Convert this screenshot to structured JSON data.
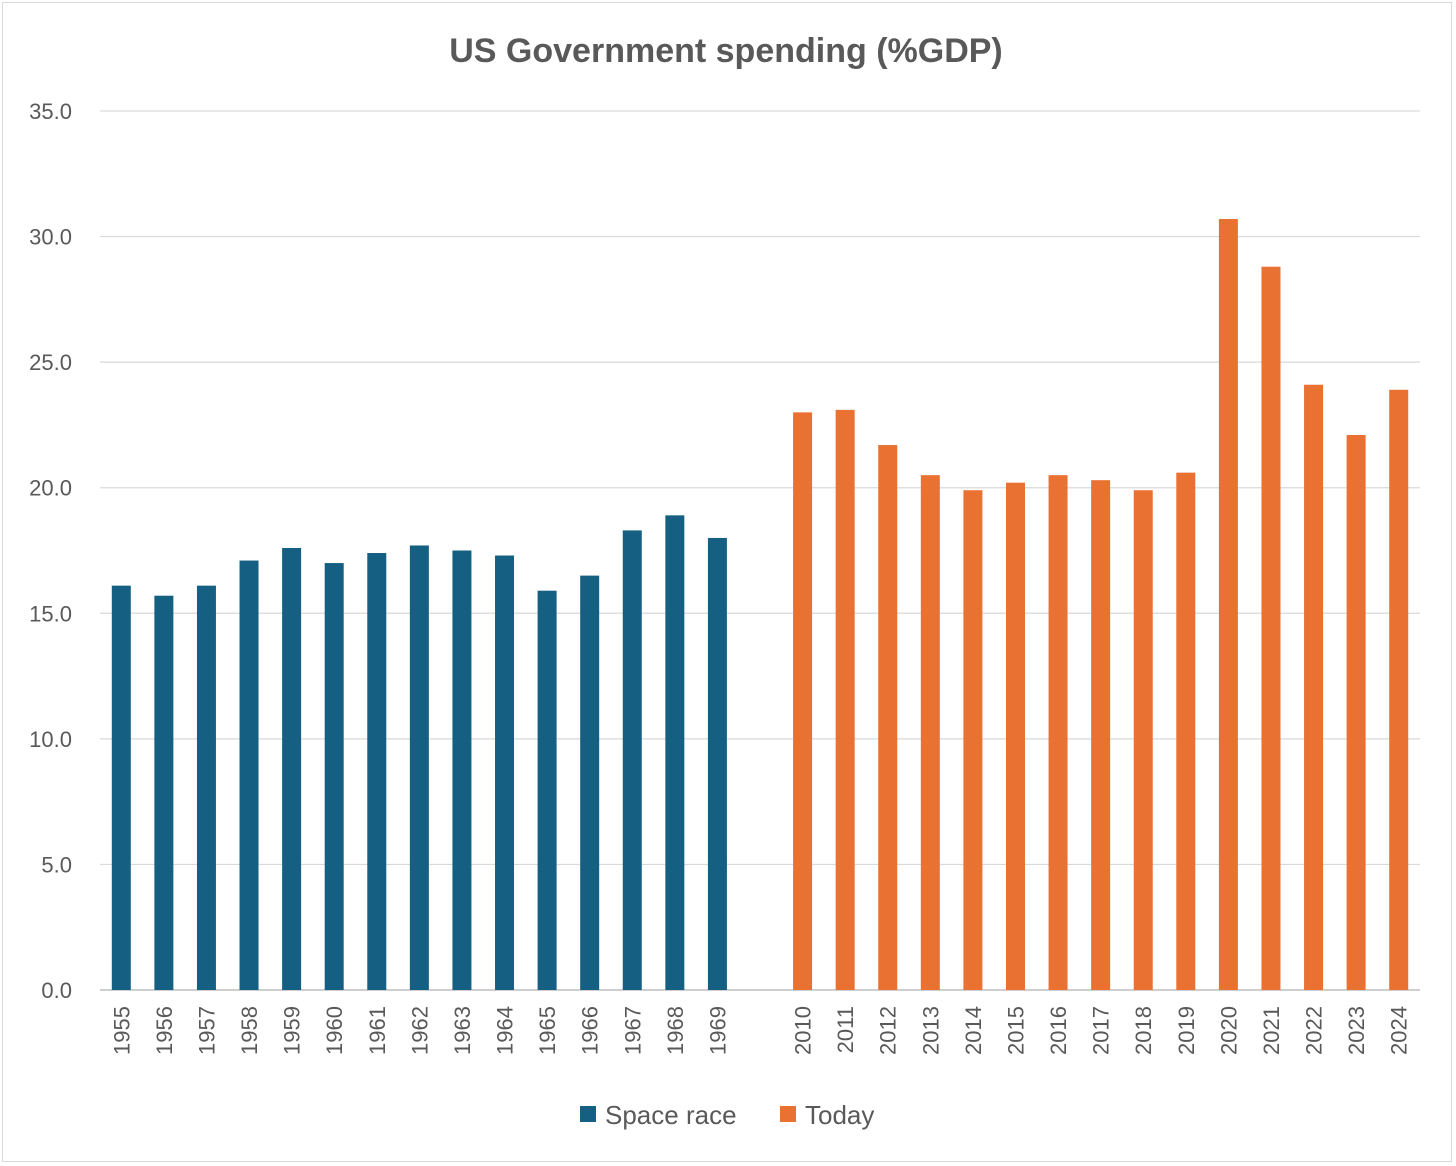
{
  "chart_data": {
    "type": "bar",
    "title": "US Government spending (%GDP)",
    "xlabel": "",
    "ylabel": "",
    "ylim": [
      0,
      35
    ],
    "yticks": [
      "0.0",
      "5.0",
      "10.0",
      "15.0",
      "20.0",
      "25.0",
      "30.0",
      "35.0"
    ],
    "grid": true,
    "legend_position": "bottom",
    "series": [
      {
        "name": "Space race",
        "color": "#156082",
        "categories": [
          "1955",
          "1956",
          "1957",
          "1958",
          "1959",
          "1960",
          "1961",
          "1962",
          "1963",
          "1964",
          "1965",
          "1966",
          "1967",
          "1968",
          "1969"
        ],
        "values": [
          16.1,
          15.7,
          16.1,
          17.1,
          17.6,
          17.0,
          17.4,
          17.7,
          17.5,
          17.3,
          15.9,
          16.5,
          18.3,
          18.9,
          18.0
        ]
      },
      {
        "name": "Today",
        "color": "#E97132",
        "categories": [
          "2010",
          "2011",
          "2012",
          "2013",
          "2014",
          "2015",
          "2016",
          "2017",
          "2018",
          "2019",
          "2020",
          "2021",
          "2022",
          "2023",
          "2024"
        ],
        "values": [
          23.0,
          23.1,
          21.7,
          20.5,
          19.9,
          20.2,
          20.5,
          20.3,
          19.9,
          20.6,
          30.7,
          28.8,
          24.1,
          22.1,
          23.9
        ]
      }
    ]
  }
}
